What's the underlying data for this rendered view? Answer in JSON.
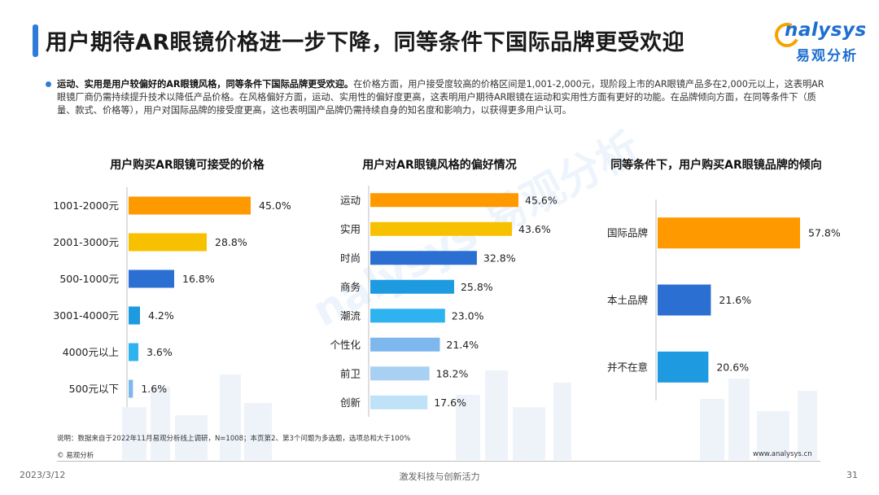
{
  "header": {
    "title": "用户期待AR眼镜价格进一步下降，同等条件下国际品牌更受欢迎",
    "logo_en": "nalysys",
    "logo_cn": "易观分析"
  },
  "summary": {
    "lead": "运动、实用是用户较偏好的AR眼镜风格，同等条件下国际品牌更受欢迎。",
    "body": "在价格方面，用户接受度较高的价格区间是1,001-2,000元，现阶段上市的AR眼镜产品多在2,000元以上，这表明AR眼镜厂商仍需持续提升技术以降低产品价格。在风格偏好方面，运动、实用性的偏好度更高，这表明用户期待AR眼镜在运动和实用性方面有更好的功能。在品牌倾向方面，在同等条件下（质量、款式、价格等），用户对国际品牌的接受度更高，这也表明国产品牌仍需持续自身的知名度和影响力，以获得更多用户认可。"
  },
  "watermark": "nalysys 易观分析",
  "colors": {
    "orange": "#FF9900",
    "yellow": "#F8C100",
    "blue_dark": "#2A6FD1",
    "blue_mid": "#1E9AE0",
    "blue_light": "#2FB2F0",
    "blue_pale": "#7DB7EE",
    "blue_paler": "#A7D0F3",
    "blue_palest": "#BFE2F8",
    "accent": "#2F7BD8"
  },
  "chart_data": [
    {
      "type": "bar",
      "orientation": "horizontal",
      "title": "用户购买AR眼镜可接受的价格",
      "categories": [
        "1001-2000元",
        "2001-3000元",
        "500-1000元",
        "3001-4000元",
        "4000元以上",
        "500元以下"
      ],
      "values": [
        45.0,
        28.8,
        16.8,
        4.2,
        3.6,
        1.6
      ],
      "labels": [
        "45.0%",
        "28.8%",
        "16.8%",
        "4.2%",
        "3.6%",
        "1.6%"
      ],
      "colors": [
        "#FF9900",
        "#F8C100",
        "#2A6FD1",
        "#1E9AE0",
        "#2FB2F0",
        "#7DB7EE"
      ],
      "unit": "%"
    },
    {
      "type": "bar",
      "orientation": "horizontal",
      "title": "用户对AR眼镜风格的偏好情况",
      "categories": [
        "运动",
        "实用",
        "时尚",
        "商务",
        "潮流",
        "个性化",
        "前卫",
        "创新"
      ],
      "values": [
        45.6,
        43.6,
        32.8,
        25.8,
        23.0,
        21.4,
        18.2,
        17.6
      ],
      "labels": [
        "45.6%",
        "43.6%",
        "32.8%",
        "25.8%",
        "23.0%",
        "21.4%",
        "18.2%",
        "17.6%"
      ],
      "colors": [
        "#FF9900",
        "#F8C100",
        "#2A6FD1",
        "#1E9AE0",
        "#2FB2F0",
        "#7DB7EE",
        "#A7D0F3",
        "#BFE2F8"
      ],
      "unit": "%"
    },
    {
      "type": "bar",
      "orientation": "horizontal",
      "title": "同等条件下，用户购买AR眼镜品牌的倾向",
      "categories": [
        "国际品牌",
        "本土品牌",
        "并不在意"
      ],
      "values": [
        57.8,
        21.6,
        20.6
      ],
      "labels": [
        "57.8%",
        "21.6%",
        "20.6%"
      ],
      "colors": [
        "#FF9900",
        "#2A6FD1",
        "#1E9AE0"
      ],
      "unit": "%"
    }
  ],
  "footer": {
    "note": "说明：数据来自于2022年11月易观分析线上调研，N=1008；本页第2、第3个问题为多选题，选项总和大于100%",
    "copyright": "© 易观分析",
    "website": "www.analysys.cn",
    "date": "2023/3/12",
    "slogan": "激发科技与创新活力",
    "page": "31"
  }
}
